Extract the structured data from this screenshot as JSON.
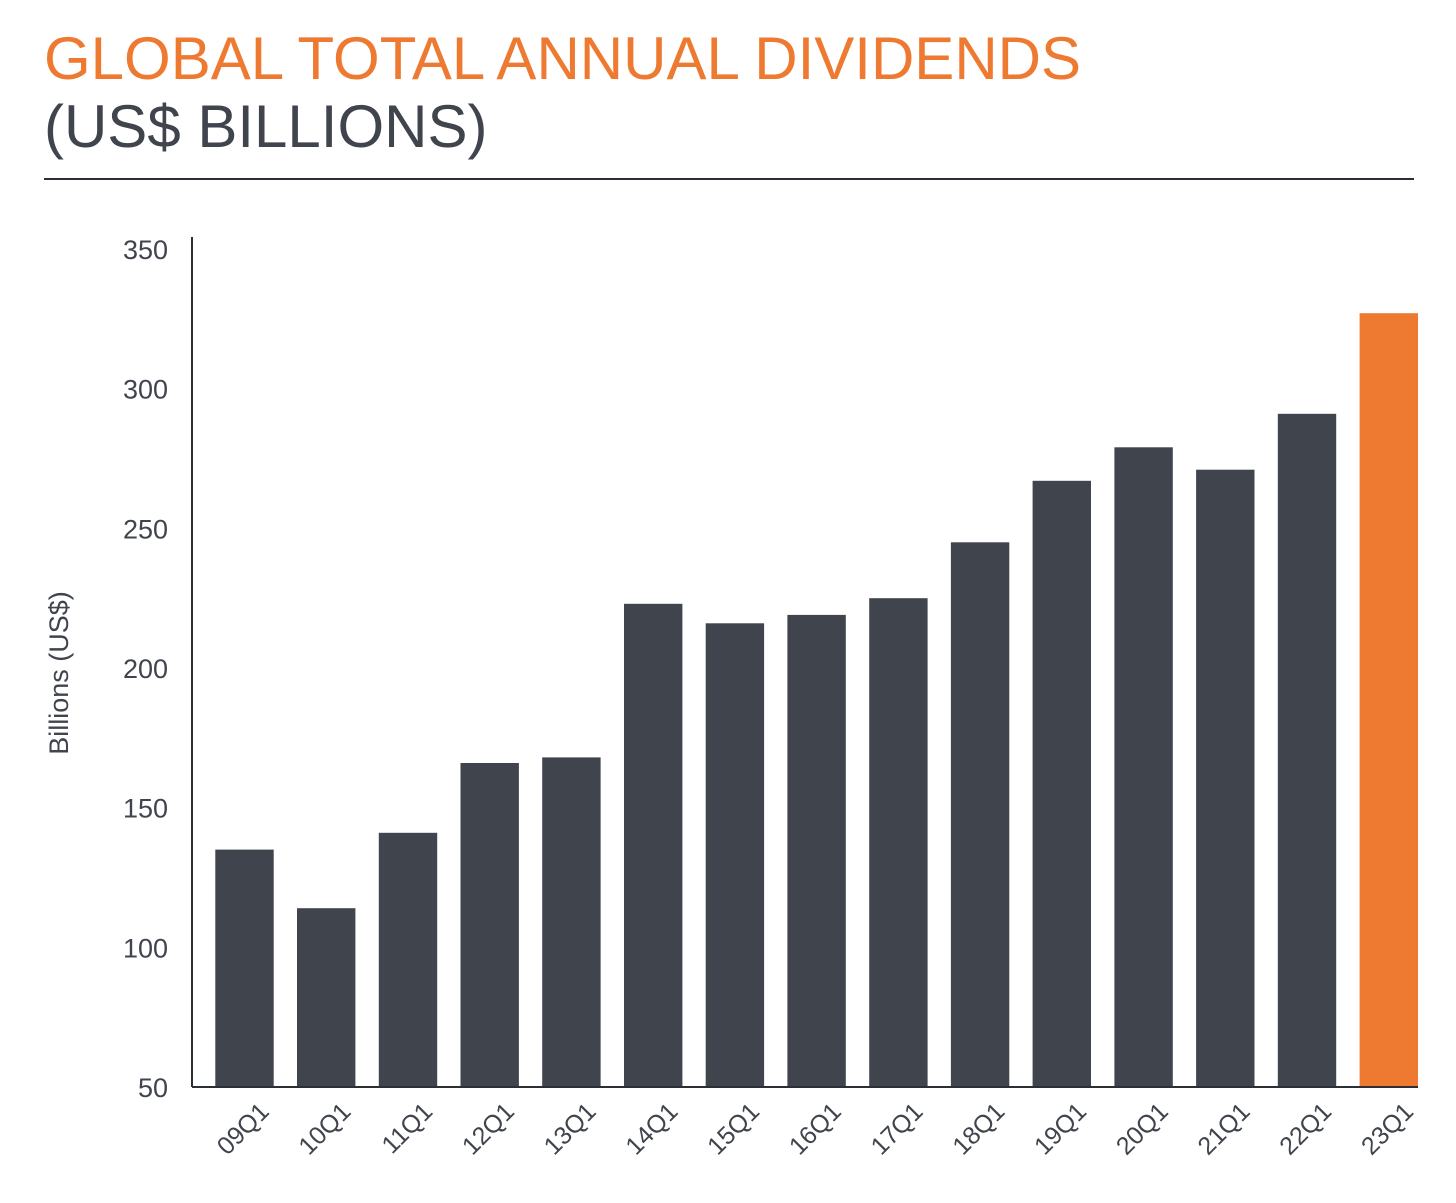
{
  "title": "GLOBAL TOTAL ANNUAL DIVIDENDS",
  "subtitle": "(US$ BILLIONS)",
  "colors": {
    "bar": "#3f444d",
    "highlight": "#ee7a32",
    "axis": "#2b2f36",
    "title": "#ee7a32",
    "text": "#3f444d"
  },
  "chart_data": {
    "type": "bar",
    "title": "GLOBAL TOTAL ANNUAL DIVIDENDS",
    "subtitle": "(US$ BILLIONS)",
    "ylabel": "Billions (US$)",
    "xlabel": "",
    "ylim": [
      50,
      350
    ],
    "yticks": [
      50,
      100,
      150,
      200,
      250,
      300,
      350
    ],
    "categories": [
      "09Q1",
      "10Q1",
      "11Q1",
      "12Q1",
      "13Q1",
      "14Q1",
      "15Q1",
      "16Q1",
      "17Q1",
      "18Q1",
      "19Q1",
      "20Q1",
      "21Q1",
      "22Q1",
      "23Q1"
    ],
    "values": [
      135,
      114,
      141,
      166,
      168,
      223,
      216,
      219,
      225,
      245,
      267,
      279,
      271,
      291,
      327
    ],
    "highlight_category": "23Q1",
    "grid": false,
    "legend": "none"
  }
}
